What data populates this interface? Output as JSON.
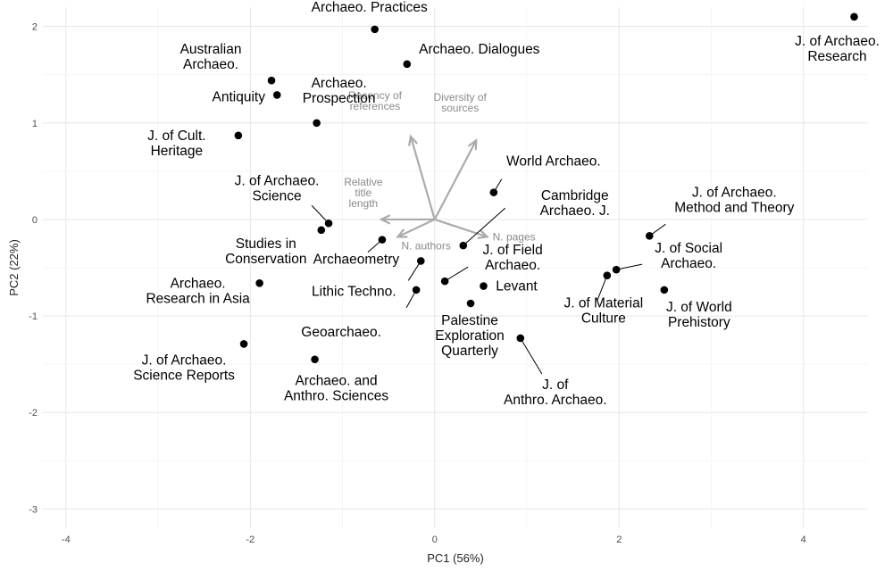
{
  "chart_data": {
    "type": "scatter",
    "title": "",
    "xlabel": "PC1 (56%)",
    "ylabel": "PC2 (22%)",
    "xlim": [
      -4.25,
      4.7
    ],
    "ylim": [
      -3.2,
      2.2
    ],
    "xticks": [
      -4,
      -2,
      0,
      2,
      4
    ],
    "yticks": [
      -3,
      -2,
      -1,
      0,
      1,
      2
    ],
    "grid": true,
    "points": [
      {
        "label": "Adv. in Archaeo. Practices",
        "x": -0.65,
        "y": 1.97
      },
      {
        "label": "J. of Archaeo. Research",
        "x": 4.55,
        "y": 2.1
      },
      {
        "label": "Archaeo. Dialogues",
        "x": -0.3,
        "y": 1.61
      },
      {
        "label": "Australian Archaeo.",
        "x": -1.77,
        "y": 1.44
      },
      {
        "label": "Antiquity",
        "x": -1.71,
        "y": 1.29
      },
      {
        "label": "Archaeo. Prospection",
        "x": -1.28,
        "y": 1.0
      },
      {
        "label": "J. of Cult. Heritage",
        "x": -2.13,
        "y": 0.87
      },
      {
        "label": "World Archaeo.",
        "x": 0.64,
        "y": 0.28
      },
      {
        "label": "J. of Archaeo. Science",
        "x": -1.15,
        "y": -0.04
      },
      {
        "label": "Studies in Conservation",
        "x": -1.23,
        "y": -0.11
      },
      {
        "label": "Cambridge Archaeo. J.",
        "x": 0.31,
        "y": -0.27
      },
      {
        "label": "J. of Archaeo. Method and Theory",
        "x": 2.33,
        "y": -0.17
      },
      {
        "label": "Archaeometry",
        "x": -0.57,
        "y": -0.21
      },
      {
        "label": "Lithic Techno.",
        "x": -0.15,
        "y": -0.43
      },
      {
        "label": "J. of Field Archaeo.",
        "x": 0.11,
        "y": -0.64
      },
      {
        "label": "J. of Social Archaeo.",
        "x": 1.97,
        "y": -0.52
      },
      {
        "label": "J. of Material Culture",
        "x": 1.87,
        "y": -0.58
      },
      {
        "label": "Levant",
        "x": 0.53,
        "y": -0.69
      },
      {
        "label": "Archaeo. Research in Asia",
        "x": -1.9,
        "y": -0.66
      },
      {
        "label": "Geoarchaeo.",
        "x": -0.2,
        "y": -0.73
      },
      {
        "label": "J. of World Prehistory",
        "x": 2.49,
        "y": -0.73
      },
      {
        "label": "Palestine Exploration Quarterly",
        "x": 0.39,
        "y": -0.87
      },
      {
        "label": "J. of Anthro. Archaeo.",
        "x": 0.93,
        "y": -1.23
      },
      {
        "label": "J. of Archaeo. Science Reports",
        "x": -2.07,
        "y": -1.29
      },
      {
        "label": "Archaeo. and Anthro. Sciences",
        "x": -1.3,
        "y": -1.45
      }
    ],
    "loadings": [
      {
        "label": "Recency of references",
        "x": -0.26,
        "y": 0.86
      },
      {
        "label": "Diversity of sources",
        "x": 0.45,
        "y": 0.82
      },
      {
        "label": "Relative title length",
        "x": -0.58,
        "y": 0.0
      },
      {
        "label": "N. authors",
        "x": -0.4,
        "y": -0.18
      },
      {
        "label": "N. pages",
        "x": 0.57,
        "y": -0.18
      }
    ]
  }
}
